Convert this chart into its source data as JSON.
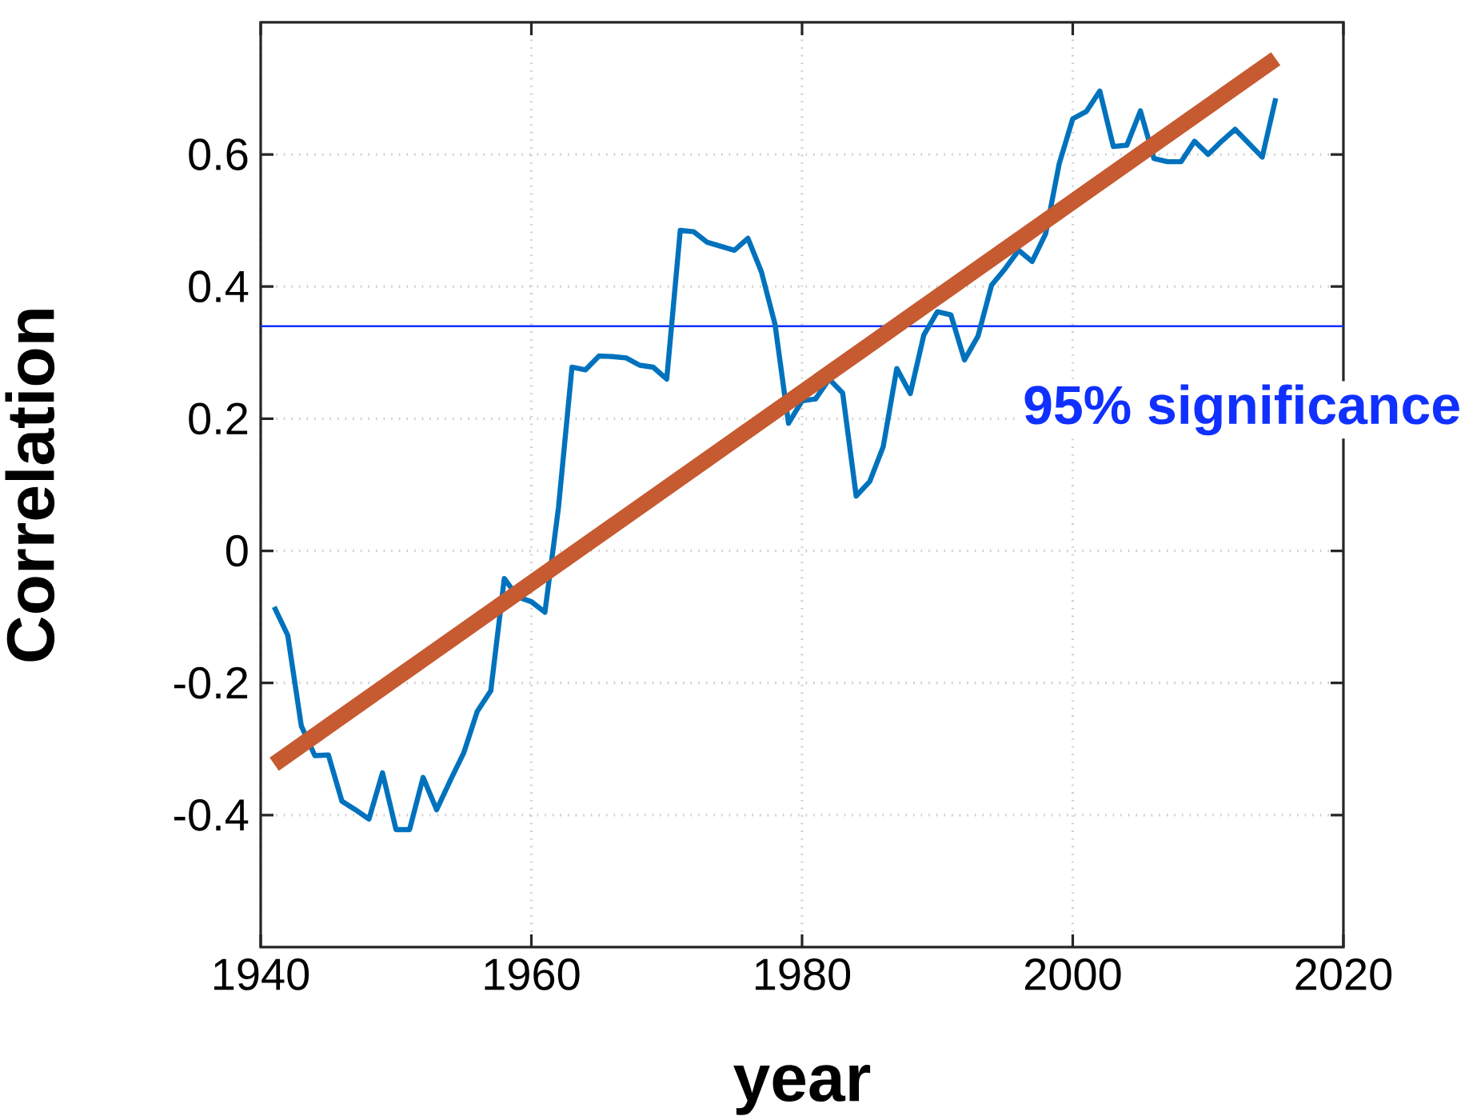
{
  "chart_data": {
    "type": "line",
    "xlabel": "year",
    "ylabel": "Correlation",
    "xlim": [
      1940,
      2020
    ],
    "ylim": [
      -0.6,
      0.8
    ],
    "xticks": [
      1940,
      1960,
      1980,
      2000,
      2020
    ],
    "yticks": [
      -0.4,
      -0.2,
      0,
      0.2,
      0.4,
      0.6
    ],
    "grid": true,
    "line_style": "solid",
    "series": [
      {
        "color": "#0072bd",
        "x": [
          1941,
          1942,
          1943,
          1944,
          1945,
          1946,
          1947,
          1948,
          1949,
          1950,
          1951,
          1952,
          1953,
          1954,
          1955,
          1956,
          1957,
          1958,
          1959,
          1960,
          1961,
          1962,
          1963,
          1964,
          1965,
          1966,
          1967,
          1968,
          1969,
          1970,
          1971,
          1972,
          1973,
          1974,
          1975,
          1976,
          1977,
          1978,
          1979,
          1980,
          1981,
          1982,
          1983,
          1984,
          1985,
          1986,
          1987,
          1988,
          1989,
          1990,
          1991,
          1992,
          1993,
          1994,
          1995,
          1996,
          1997,
          1998,
          1999,
          2000,
          2001,
          2002,
          2003,
          2004,
          2005,
          2006,
          2007,
          2008,
          2009,
          2010,
          2011,
          2012,
          2013,
          2014,
          2015
        ],
        "values": [
          -0.085,
          -0.128,
          -0.265,
          -0.31,
          -0.309,
          -0.379,
          -0.392,
          -0.406,
          -0.336,
          -0.422,
          -0.422,
          -0.343,
          -0.392,
          -0.348,
          -0.306,
          -0.243,
          -0.212,
          -0.042,
          -0.07,
          -0.077,
          -0.093,
          0.065,
          0.278,
          0.274,
          0.295,
          0.294,
          0.292,
          0.281,
          0.278,
          0.26,
          0.485,
          0.483,
          0.467,
          0.461,
          0.455,
          0.473,
          0.422,
          0.343,
          0.193,
          0.227,
          0.23,
          0.26,
          0.239,
          0.083,
          0.105,
          0.158,
          0.276,
          0.238,
          0.327,
          0.362,
          0.357,
          0.289,
          0.325,
          0.402,
          0.427,
          0.455,
          0.438,
          0.48,
          0.586,
          0.654,
          0.665,
          0.696,
          0.612,
          0.614,
          0.666,
          0.594,
          0.589,
          0.589,
          0.62,
          0.6,
          0.62,
          0.638,
          0.617,
          0.596,
          0.685
        ]
      },
      {
        "color": "#c65a30",
        "x": [
          1941,
          2015
        ],
        "values": [
          -0.323,
          0.745
        ]
      }
    ],
    "ref_lines": [
      {
        "axis": "y",
        "value": 0.34,
        "label": "95% significance",
        "color": "#1030ff"
      }
    ]
  }
}
